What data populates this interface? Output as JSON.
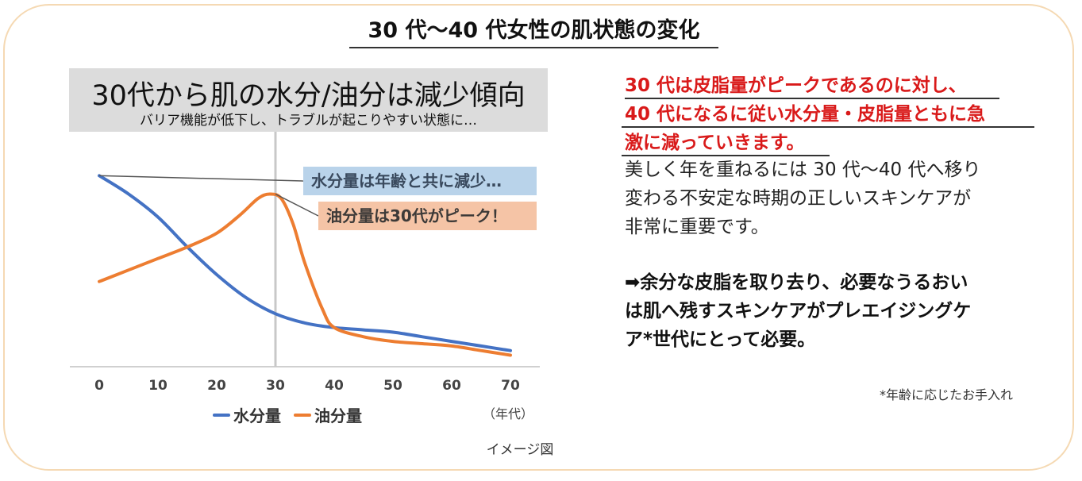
{
  "main_title": "30 代〜40 代女性の肌状態の変化",
  "chart_header": {
    "heading": "30代から肌の水分/油分は減少傾向",
    "subheading": "バリア機能が低下し、トラブルが起こりやすい状態に…"
  },
  "callouts": {
    "water": "水分量は年齢と共に減少…",
    "oil": "油分量は30代がピーク！"
  },
  "chart_data": {
    "type": "line",
    "title": "30代から肌の水分/油分は減少傾向",
    "x_unit_label": "（年代）",
    "x_ticks": [
      "0",
      "10",
      "20",
      "30",
      "40",
      "50",
      "60",
      "70"
    ],
    "xlim": [
      0,
      70
    ],
    "ylim": [
      0,
      100
    ],
    "grid": false,
    "highlight_x": 30,
    "legend_position": "bottom",
    "series": [
      {
        "name": "水分量",
        "color": "#4472c4",
        "x": [
          0,
          5,
          10,
          15,
          20,
          25,
          30,
          35,
          40,
          45,
          50,
          55,
          60,
          65,
          70
        ],
        "y": [
          83,
          75,
          65,
          52,
          40,
          30,
          23,
          19,
          17,
          16,
          15,
          13,
          11,
          9,
          7
        ]
      },
      {
        "name": "油分量",
        "color": "#ed7d31",
        "x": [
          0,
          5,
          10,
          15,
          20,
          24,
          27,
          29,
          31,
          33,
          35,
          38,
          40,
          45,
          50,
          55,
          60,
          65,
          70
        ],
        "y": [
          37,
          42,
          47,
          52,
          58,
          66,
          73,
          75,
          73,
          62,
          45,
          25,
          17,
          13,
          11,
          10,
          9,
          7,
          5
        ]
      }
    ]
  },
  "caption": "イメージ図",
  "red_text": {
    "lines": [
      "30 代は皮脂量がピークであるのに対し、",
      "40 代になるに従い水分量・皮脂量ともに急",
      "激に減っていきます。"
    ]
  },
  "body_text": {
    "lines": [
      "美しく年を重ねるには 30 代〜40 代へ移り",
      "変わる不安定な時期の正しいスキンケアが",
      "非常に重要です。"
    ]
  },
  "bold_text": {
    "lines": [
      "➡余分な皮脂を取り去り、必要なうるおい",
      "は肌へ残すスキンケアがプレエイジングケ",
      "ア*世代にとって必要。"
    ]
  },
  "footnote": "*年齢に応じたお手入れ",
  "colors": {
    "frame_border": "#f5d9b3",
    "header_bg": "#dcdcdc",
    "water_callout_bg": "#b9d3ea",
    "oil_callout_bg": "#f5c4a6",
    "red_text": "#d91a1a"
  }
}
